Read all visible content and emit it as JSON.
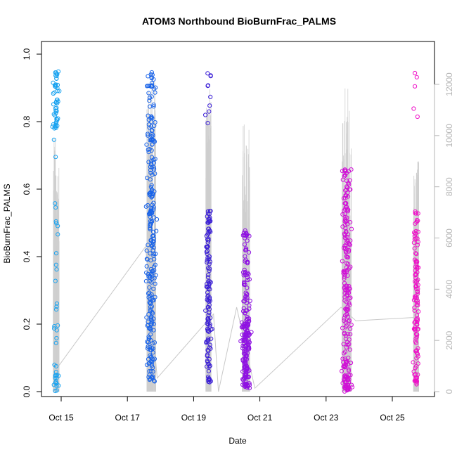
{
  "chart_data": {
    "type": "scatter",
    "title": "ATOM3 Northbound BioBurnFrac_PALMS",
    "xlabel": "Date",
    "ylabel": "BioBurnFrac_PALMS",
    "x_ticks": [
      "Oct 15",
      "Oct 17",
      "Oct 19",
      "Oct 21",
      "Oct 23",
      "Oct 25"
    ],
    "x_tick_days": [
      15,
      17,
      19,
      21,
      23,
      25
    ],
    "xlim": [
      14.5,
      26.2
    ],
    "ylim": [
      0,
      1
    ],
    "y_ticks": [
      "0.0",
      "0.2",
      "0.4",
      "0.6",
      "0.8",
      "1.0"
    ],
    "y_tick_values": [
      0,
      0.2,
      0.4,
      0.6,
      0.8,
      1.0
    ],
    "y2_ticks": [
      "0",
      "2000",
      "4000",
      "6000",
      "8000",
      "10000",
      "12000"
    ],
    "y2_tick_values": [
      0,
      2000,
      4000,
      6000,
      8000,
      10000,
      12000
    ],
    "y2lim": [
      0,
      12000
    ],
    "grid": false,
    "legend": "none",
    "marker": "open-circle",
    "series": [
      {
        "day_center": 14.85,
        "day_spread": 0.09,
        "color": "#1aa3f0",
        "n": 90,
        "value_profile": "high-cluster"
      },
      {
        "day_center": 17.72,
        "day_spread": 0.14,
        "color": "#1b64e8",
        "n": 260,
        "value_profile": "broad"
      },
      {
        "day_center": 19.45,
        "day_spread": 0.08,
        "color": "#3a1ed6",
        "n": 130,
        "value_profile": "mid"
      },
      {
        "day_center": 20.58,
        "day_spread": 0.12,
        "color": "#8f12e2",
        "n": 210,
        "value_profile": "low-cluster"
      },
      {
        "day_center": 23.62,
        "day_spread": 0.14,
        "color": "#d010d6",
        "n": 220,
        "value_profile": "mid-low"
      },
      {
        "day_center": 25.72,
        "day_spread": 0.08,
        "color": "#ef10c8",
        "n": 120,
        "value_profile": "mid"
      }
    ],
    "trend_points": [
      {
        "x": 14.88,
        "y": 0.07
      },
      {
        "x": 17.55,
        "y": 0.43
      },
      {
        "x": 17.9,
        "y": 0.04
      },
      {
        "x": 19.6,
        "y": 0.23
      },
      {
        "x": 19.75,
        "y": 0.0
      },
      {
        "x": 20.3,
        "y": 0.25
      },
      {
        "x": 20.85,
        "y": 0.01
      },
      {
        "x": 23.45,
        "y": 0.25
      },
      {
        "x": 23.9,
        "y": 0.21
      },
      {
        "x": 25.72,
        "y": 0.22
      }
    ],
    "altitude_spikes": [
      {
        "day_center": 14.85,
        "day_spread": 0.09,
        "max": 9900
      },
      {
        "day_center": 17.72,
        "day_spread": 0.14,
        "max": 12500
      },
      {
        "day_center": 19.45,
        "day_spread": 0.08,
        "max": 12200
      },
      {
        "day_center": 20.58,
        "day_spread": 0.12,
        "max": 10500
      },
      {
        "day_center": 23.62,
        "day_spread": 0.14,
        "max": 11900
      },
      {
        "day_center": 25.72,
        "day_spread": 0.08,
        "max": 9500
      }
    ]
  }
}
